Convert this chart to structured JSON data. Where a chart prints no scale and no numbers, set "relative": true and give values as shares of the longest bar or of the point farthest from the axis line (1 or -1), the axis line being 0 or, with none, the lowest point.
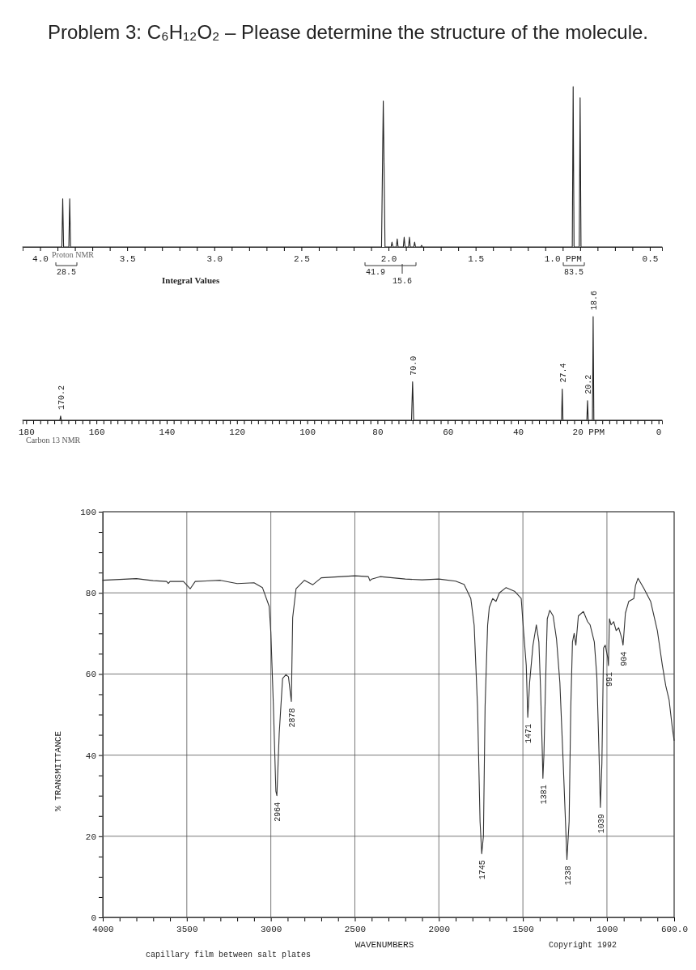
{
  "chart_data": [
    {
      "type": "line",
      "title": "Problem 3: C₆H₁₂O₂ – Please determine the structure of the molecule.",
      "relative": true,
      "xlim": [
        4.1,
        0.43
      ],
      "xticks": [
        {
          "value": 4,
          "label": "4.0"
        },
        {
          "value": 3.9,
          "label": null
        },
        {
          "value": 3.8,
          "label": null
        },
        {
          "value": 3.7,
          "label": null
        },
        {
          "value": 3.6,
          "label": null
        },
        3.5,
        {
          "value": 3.4,
          "label": null
        },
        {
          "value": 3.3,
          "label": null
        },
        {
          "value": 3.2,
          "label": null
        },
        {
          "value": 3.1,
          "label": null
        },
        {
          "value": 3,
          "label": "3.0"
        },
        {
          "value": 2.9,
          "label": null
        },
        {
          "value": 2.8,
          "label": null
        },
        {
          "value": 2.7,
          "label": null
        },
        {
          "value": 2.6,
          "label": null
        },
        2.5,
        {
          "value": 2.4,
          "label": null
        },
        {
          "value": 2.3,
          "label": null
        },
        {
          "value": 2.2,
          "label": null
        },
        {
          "value": 2.1,
          "label": null
        },
        {
          "value": 2,
          "label": "2.0"
        },
        {
          "value": 1.9,
          "label": null
        },
        {
          "value": 1.8,
          "label": null
        },
        {
          "value": 1.7,
          "label": null
        },
        {
          "value": 1.6,
          "label": null
        },
        1.5,
        {
          "value": 1.4,
          "label": null
        },
        {
          "value": 1.3,
          "label": null
        },
        {
          "value": 1.2,
          "label": null
        },
        {
          "value": 1.1,
          "label": null
        },
        {
          "value": 1.0,
          "label": "1.0 PPM"
        },
        {
          "value": 0.9,
          "label": null
        },
        {
          "value": 0.8,
          "label": null
        },
        {
          "value": 0.7,
          "label": null
        },
        {
          "value": 0.6,
          "label": null
        },
        0.5
      ],
      "series": [
        {
          "color": "#222222",
          "x": [
            4.1,
            3.875,
            3.87,
            3.865,
            3.835,
            3.83,
            3.825,
            2.04,
            2.03,
            2.02,
            1.985,
            1.98,
            1.975,
            1.955,
            1.95,
            1.945,
            1.915,
            1.91,
            1.905,
            1.885,
            1.88,
            1.875,
            1.855,
            1.85,
            1.845,
            1.815,
            1.81,
            1.805,
            0.945,
            0.94,
            0.935,
            0.905,
            0.9,
            0.895,
            0.43
          ],
          "values": [
            0,
            0,
            0.3,
            0,
            0,
            0.3,
            0,
            0,
            0.91,
            0,
            0,
            0.03,
            0,
            0,
            0.05,
            0,
            0,
            0.06,
            0,
            0,
            0.06,
            0,
            0,
            0.03,
            0,
            0,
            0.01,
            0,
            0,
            1,
            0,
            0,
            0.93,
            0,
            0
          ]
        }
      ],
      "annotations": [
        "Proton NMR",
        "Integral Values",
        "28.5",
        "41.9",
        "15.6",
        "83.5"
      ]
    },
    {
      "type": "line",
      "relative": true,
      "xlim": [
        181,
        -1
      ],
      "xticks": [
        180,
        {
          "value": 178,
          "label": null
        },
        {
          "value": 176,
          "label": null
        },
        {
          "value": 174,
          "label": null
        },
        {
          "value": 172,
          "label": null
        },
        {
          "value": 170,
          "label": null
        },
        {
          "value": 168,
          "label": null
        },
        {
          "value": 166,
          "label": null
        },
        {
          "value": 164,
          "label": null
        },
        {
          "value": 162,
          "label": null
        },
        160,
        {
          "value": 158,
          "label": null
        },
        {
          "value": 156,
          "label": null
        },
        {
          "value": 154,
          "label": null
        },
        {
          "value": 152,
          "label": null
        },
        {
          "value": 150,
          "label": null
        },
        {
          "value": 148,
          "label": null
        },
        {
          "value": 146,
          "label": null
        },
        {
          "value": 144,
          "label": null
        },
        {
          "value": 142,
          "label": null
        },
        140,
        {
          "value": 138,
          "label": null
        },
        {
          "value": 136,
          "label": null
        },
        {
          "value": 134,
          "label": null
        },
        {
          "value": 132,
          "label": null
        },
        {
          "value": 130,
          "label": null
        },
        {
          "value": 128,
          "label": null
        },
        {
          "value": 126,
          "label": null
        },
        {
          "value": 124,
          "label": null
        },
        {
          "value": 122,
          "label": null
        },
        120,
        {
          "value": 118,
          "label": null
        },
        {
          "value": 116,
          "label": null
        },
        {
          "value": 114,
          "label": null
        },
        {
          "value": 112,
          "label": null
        },
        {
          "value": 110,
          "label": null
        },
        {
          "value": 108,
          "label": null
        },
        {
          "value": 106,
          "label": null
        },
        {
          "value": 104,
          "label": null
        },
        {
          "value": 102,
          "label": null
        },
        100,
        {
          "value": 98,
          "label": null
        },
        {
          "value": 96,
          "label": null
        },
        {
          "value": 94,
          "label": null
        },
        {
          "value": 92,
          "label": null
        },
        {
          "value": 90,
          "label": null
        },
        {
          "value": 88,
          "label": null
        },
        {
          "value": 86,
          "label": null
        },
        {
          "value": 84,
          "label": null
        },
        {
          "value": 82,
          "label": null
        },
        80,
        {
          "value": 78,
          "label": null
        },
        {
          "value": 76,
          "label": null
        },
        {
          "value": 74,
          "label": null
        },
        {
          "value": 72,
          "label": null
        },
        {
          "value": 70,
          "label": null
        },
        {
          "value": 68,
          "label": null
        },
        {
          "value": 66,
          "label": null
        },
        {
          "value": 64,
          "label": null
        },
        {
          "value": 62,
          "label": null
        },
        60,
        {
          "value": 58,
          "label": null
        },
        {
          "value": 56,
          "label": null
        },
        {
          "value": 54,
          "label": null
        },
        {
          "value": 52,
          "label": null
        },
        {
          "value": 50,
          "label": null
        },
        {
          "value": 48,
          "label": null
        },
        {
          "value": 46,
          "label": null
        },
        {
          "value": 44,
          "label": null
        },
        {
          "value": 42,
          "label": null
        },
        40,
        {
          "value": 38,
          "label": null
        },
        {
          "value": 36,
          "label": null
        },
        {
          "value": 34,
          "label": null
        },
        {
          "value": 32,
          "label": null
        },
        {
          "value": 30,
          "label": null
        },
        {
          "value": 28,
          "label": null
        },
        {
          "value": 26,
          "label": null
        },
        {
          "value": 24,
          "label": null
        },
        {
          "value": 22,
          "label": null
        },
        {
          "value": 20,
          "label": "20 PPM"
        },
        {
          "value": 18,
          "label": null
        },
        {
          "value": 16,
          "label": null
        },
        {
          "value": 14,
          "label": null
        },
        {
          "value": 12,
          "label": null
        },
        {
          "value": 10,
          "label": null
        },
        {
          "value": 8,
          "label": null
        },
        {
          "value": 6,
          "label": null
        },
        {
          "value": 4,
          "label": null
        },
        {
          "value": 2,
          "label": null
        },
        0
      ],
      "series": [
        {
          "color": "#222222",
          "x": [
            181,
            170.4,
            170.2,
            170.0,
            70.3,
            70.0,
            69.7,
            27.6,
            27.4,
            27.2,
            20.4,
            20.2,
            20.0,
            18.8,
            18.6,
            18.4,
            -1
          ],
          "values": [
            0,
            0,
            0.04,
            0,
            0,
            0.37,
            0,
            0,
            0.3,
            0,
            0,
            0.19,
            0,
            0,
            1,
            0,
            0
          ]
        }
      ],
      "annotations": [
        "Carbon 13 NMR",
        {
          "text": "170.2",
          "x": 170.2,
          "y": 0.04
        },
        {
          "text": "70.0",
          "x": 70.0,
          "y": 0.37
        },
        {
          "text": "27.4",
          "x": 27.4,
          "y": 0.3
        },
        {
          "text": "20.2",
          "x": 20.2,
          "y": 0.19
        },
        {
          "text": "18.6",
          "x": 18.6,
          "y": 1
        }
      ]
    },
    {
      "type": "line",
      "xlabel": "WAVENUMBERS",
      "ylabel": "% TRANSMITTANCE",
      "xlim": [
        4000,
        600
      ],
      "ylim": [
        0,
        100
      ],
      "grid": true,
      "xticks": [
        4000,
        {
          "value": 3900,
          "label": null
        },
        {
          "value": 3800,
          "label": null
        },
        {
          "value": 3700,
          "label": null
        },
        {
          "value": 3600,
          "label": null
        },
        3500,
        {
          "value": 3400,
          "label": null
        },
        {
          "value": 3300,
          "label": null
        },
        {
          "value": 3200,
          "label": null
        },
        {
          "value": 3100,
          "label": null
        },
        3000,
        {
          "value": 2900,
          "label": null
        },
        {
          "value": 2800,
          "label": null
        },
        {
          "value": 2700,
          "label": null
        },
        {
          "value": 2600,
          "label": null
        },
        2500,
        {
          "value": 2400,
          "label": null
        },
        {
          "value": 2300,
          "label": null
        },
        {
          "value": 2200,
          "label": null
        },
        {
          "value": 2100,
          "label": null
        },
        2000,
        {
          "value": 1900,
          "label": null
        },
        {
          "value": 1800,
          "label": null
        },
        {
          "value": 1700,
          "label": null
        },
        {
          "value": 1600,
          "label": null
        },
        1500,
        {
          "value": 1400,
          "label": null
        },
        {
          "value": 1300,
          "label": null
        },
        {
          "value": 1200,
          "label": null
        },
        {
          "value": 1100,
          "label": null
        },
        1000,
        {
          "value": 900,
          "label": null
        },
        {
          "value": 800,
          "label": null
        },
        {
          "value": 700,
          "label": null
        },
        {
          "value": 600,
          "label": "600.0"
        }
      ],
      "yticks": [
        0,
        {
          "value": 5,
          "label": null
        },
        {
          "value": 10,
          "label": null
        },
        {
          "value": 15,
          "label": null
        },
        20,
        {
          "value": 25,
          "label": null
        },
        {
          "value": 30,
          "label": null
        },
        {
          "value": 35,
          "label": null
        },
        40,
        {
          "value": 45,
          "label": null
        },
        {
          "value": 50,
          "label": null
        },
        {
          "value": 55,
          "label": null
        },
        60,
        {
          "value": 65,
          "label": null
        },
        {
          "value": 70,
          "label": null
        },
        {
          "value": 75,
          "label": null
        },
        80,
        {
          "value": 85,
          "label": null
        },
        {
          "value": 90,
          "label": null
        },
        {
          "value": 95,
          "label": null
        },
        100
      ],
      "series": [
        {
          "color": "#333333",
          "x": [
            4000,
            3800,
            3700,
            3620,
            3610,
            3600,
            3520,
            3480,
            3450,
            3300,
            3200,
            3100,
            3050,
            3010,
            3000,
            2985,
            2970,
            2964,
            2950,
            2930,
            2910,
            2895,
            2878,
            2870,
            2850,
            2800,
            2750,
            2700,
            2500,
            2420,
            2410,
            2400,
            2350,
            2200,
            2100,
            2000,
            1900,
            1850,
            1810,
            1790,
            1770,
            1755,
            1745,
            1735,
            1725,
            1710,
            1700,
            1680,
            1660,
            1640,
            1600,
            1550,
            1510,
            1495,
            1480,
            1471,
            1460,
            1440,
            1420,
            1405,
            1395,
            1385,
            1381,
            1375,
            1365,
            1355,
            1340,
            1320,
            1300,
            1280,
            1260,
            1238,
            1225,
            1215,
            1205,
            1195,
            1185,
            1170,
            1140,
            1115,
            1100,
            1075,
            1060,
            1050,
            1039,
            1030,
            1020,
            1010,
            995,
            991,
            985,
            975,
            960,
            945,
            930,
            910,
            904,
            890,
            870,
            840,
            830,
            815,
            780,
            740,
            700,
            670,
            650,
            630,
            610,
            600
          ],
          "values": [
            83.1,
            83.5,
            83,
            82.8,
            82.3,
            82.8,
            82.8,
            81,
            82.8,
            83.1,
            82.3,
            82.5,
            81.3,
            76.7,
            70.3,
            52.5,
            31.1,
            30,
            45.4,
            58.9,
            59.8,
            59.3,
            53.2,
            73.9,
            81,
            83.1,
            82,
            83.7,
            84.2,
            84,
            83,
            83.4,
            84,
            83.4,
            83.2,
            83.4,
            82.9,
            82.1,
            78.6,
            72,
            52,
            23.6,
            15.7,
            20,
            52,
            72,
            76.4,
            78.6,
            77.9,
            80,
            81.3,
            80.4,
            78.6,
            70,
            62.1,
            49.3,
            57.9,
            67.1,
            72.1,
            67.9,
            56.4,
            41.4,
            34.3,
            40,
            57.9,
            73.6,
            75.7,
            74.3,
            68.6,
            57.9,
            37.9,
            14.3,
            23.6,
            52,
            67.9,
            70,
            67.1,
            74.3,
            75.4,
            72.9,
            72.1,
            67.9,
            59.3,
            45,
            27.1,
            37.9,
            66.4,
            67.1,
            64,
            62.1,
            73.6,
            72.1,
            72.9,
            70.7,
            71.4,
            68.6,
            67.1,
            75,
            77.9,
            78.6,
            81.8,
            83.6,
            81.1,
            77.9,
            70.7,
            62.1,
            57.1,
            53.6,
            46.4,
            43.6
          ]
        }
      ],
      "annotations": [
        "capillary film between salt plates",
        "Copyright 1992",
        {
          "text": "2964",
          "x": 2964,
          "y": 30
        },
        {
          "text": "2878",
          "x": 2878,
          "y": 53.2
        },
        {
          "text": "1745",
          "x": 1745,
          "y": 15.7
        },
        {
          "text": "1471",
          "x": 1471,
          "y": 49.3
        },
        {
          "text": "1381",
          "x": 1381,
          "y": 34.3
        },
        {
          "text": "1238",
          "x": 1238,
          "y": 14.3
        },
        {
          "text": "1039",
          "x": 1039,
          "y": 27.1
        },
        {
          "text": "991",
          "x": 991,
          "y": 62.1
        },
        {
          "text": "904",
          "x": 904,
          "y": 67.1
        }
      ]
    }
  ]
}
